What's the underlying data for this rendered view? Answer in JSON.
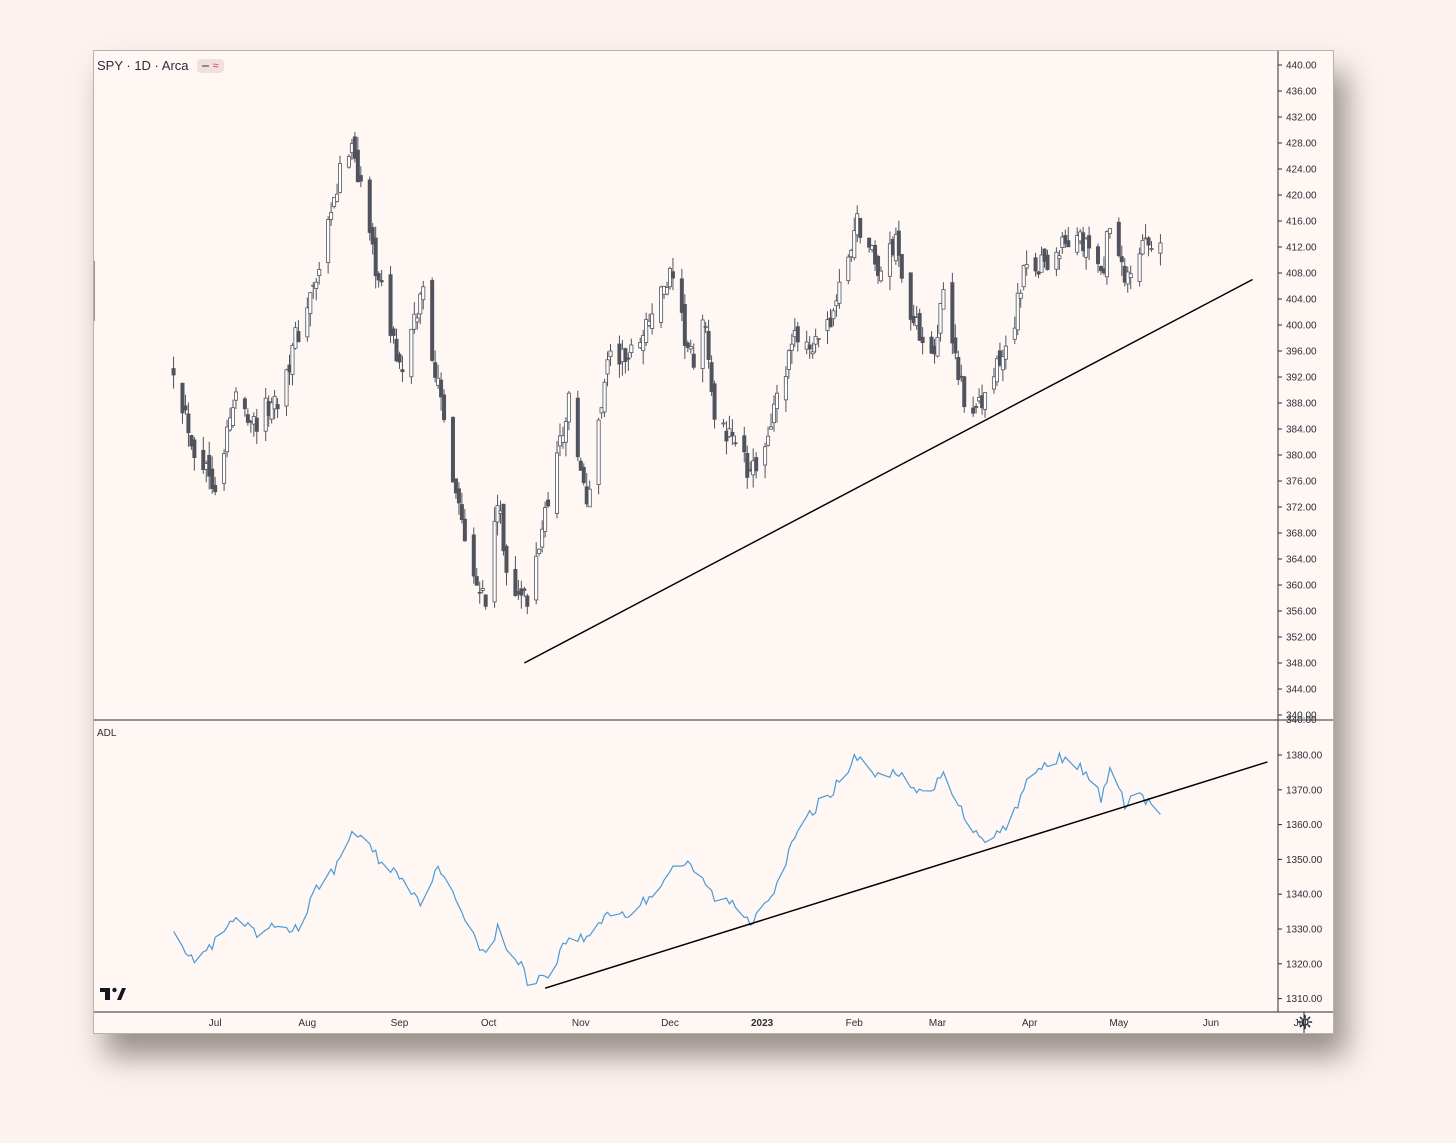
{
  "legend": {
    "symbol": "SPY · 1D · Arca",
    "indicator": "ADL"
  },
  "icons": [
    "tradingview-logo-icon",
    "settings-gear-icon"
  ],
  "colors": {
    "up_body": "#ffffff",
    "down_body": "#50535e",
    "candle_outline": "#50535e",
    "adl_line": "#4c9ad6",
    "trendline": "#000000",
    "background": "#fff7f3"
  },
  "chart_data": [
    {
      "type": "candlestick",
      "title": "SPY · 1D · Arca",
      "ylim": [
        340,
        440
      ],
      "yticks": [
        "440.00",
        "436.00",
        "432.00",
        "428.00",
        "424.00",
        "420.00",
        "416.00",
        "412.00",
        "408.00",
        "404.00",
        "400.00",
        "396.00",
        "392.00",
        "388.00",
        "384.00",
        "380.00",
        "376.00",
        "372.00",
        "368.00",
        "364.00",
        "360.00",
        "356.00",
        "352.00",
        "348.00",
        "344.00",
        "340.00"
      ],
      "x_months": [
        "Jul",
        "Aug",
        "Sep",
        "Oct",
        "Nov",
        "Dec",
        "2023",
        "Feb",
        "Mar",
        "Apr",
        "May",
        "Jun",
        "Jul"
      ],
      "x_month_dates": [
        "2022-07-01",
        "2022-08-01",
        "2022-09-01",
        "2022-10-01",
        "2022-11-01",
        "2022-12-01",
        "2023-01-01",
        "2023-02-01",
        "2023-03-01",
        "2023-04-01",
        "2023-05-01",
        "2023-06-01",
        "2023-07-01"
      ],
      "close_series": [
        [
          "2022-06-17",
          394
        ],
        [
          "2022-06-24",
          381
        ],
        [
          "2022-07-01",
          376
        ],
        [
          "2022-07-08",
          389
        ],
        [
          "2022-07-15",
          385
        ],
        [
          "2022-07-22",
          389
        ],
        [
          "2022-07-29",
          399
        ],
        [
          "2022-08-05",
          408
        ],
        [
          "2022-08-12",
          423
        ],
        [
          "2022-08-16",
          429
        ],
        [
          "2022-08-19",
          421
        ],
        [
          "2022-08-26",
          405
        ],
        [
          "2022-09-02",
          392
        ],
        [
          "2022-09-09",
          406
        ],
        [
          "2022-09-13",
          393
        ],
        [
          "2022-09-16",
          385
        ],
        [
          "2022-09-23",
          368
        ],
        [
          "2022-09-30",
          357
        ],
        [
          "2022-10-04",
          373
        ],
        [
          "2022-10-07",
          362
        ],
        [
          "2022-10-13",
          358
        ],
        [
          "2022-10-14",
          356
        ],
        [
          "2022-10-21",
          374
        ],
        [
          "2022-10-28",
          388
        ],
        [
          "2022-11-03",
          372
        ],
        [
          "2022-11-10",
          395
        ],
        [
          "2022-11-17",
          395
        ],
        [
          "2022-11-25",
          402
        ],
        [
          "2022-12-01",
          407
        ],
        [
          "2022-12-09",
          393
        ],
        [
          "2022-12-13",
          401
        ],
        [
          "2022-12-16",
          384
        ],
        [
          "2022-12-23",
          383
        ],
        [
          "2022-12-28",
          376
        ],
        [
          "2023-01-06",
          388
        ],
        [
          "2023-01-13",
          399
        ],
        [
          "2023-01-20",
          396
        ],
        [
          "2023-01-27",
          405
        ],
        [
          "2023-02-02",
          416
        ],
        [
          "2023-02-10",
          408
        ],
        [
          "2023-02-15",
          413
        ],
        [
          "2023-02-21",
          400
        ],
        [
          "2023-02-28",
          397
        ],
        [
          "2023-03-03",
          404
        ],
        [
          "2023-03-09",
          391
        ],
        [
          "2023-03-13",
          385
        ],
        [
          "2023-03-17",
          389
        ],
        [
          "2023-03-24",
          396
        ],
        [
          "2023-03-31",
          409
        ],
        [
          "2023-04-07",
          410
        ],
        [
          "2023-04-14",
          413
        ],
        [
          "2023-04-21",
          412
        ],
        [
          "2023-04-25",
          407
        ],
        [
          "2023-04-28",
          415
        ],
        [
          "2023-05-03",
          406
        ],
        [
          "2023-05-08",
          412
        ],
        [
          "2023-05-12",
          411
        ],
        [
          "2023-05-15",
          413
        ]
      ],
      "trendline": {
        "from": [
          "2022-10-13",
          348
        ],
        "to": [
          "2023-06-15",
          407
        ]
      }
    },
    {
      "type": "line",
      "title": "ADL",
      "ylim": [
        1310,
        1380
      ],
      "yticks": [
        "1380.00",
        "1370.00",
        "1360.00",
        "1350.00",
        "1340.00",
        "1330.00",
        "1320.00",
        "1310.00"
      ],
      "series": [
        {
          "name": "ADL",
          "points": [
            [
              "2022-06-17",
              1331
            ],
            [
              "2022-06-23",
              1321
            ],
            [
              "2022-06-30",
              1325
            ],
            [
              "2022-07-08",
              1333
            ],
            [
              "2022-07-15",
              1328
            ],
            [
              "2022-07-22",
              1331
            ],
            [
              "2022-07-29",
              1330
            ],
            [
              "2022-08-05",
              1343
            ],
            [
              "2022-08-12",
              1349
            ],
            [
              "2022-08-16",
              1358
            ],
            [
              "2022-08-19",
              1357
            ],
            [
              "2022-08-26",
              1349
            ],
            [
              "2022-09-02",
              1345
            ],
            [
              "2022-09-09",
              1337
            ],
            [
              "2022-09-13",
              1348
            ],
            [
              "2022-09-16",
              1344
            ],
            [
              "2022-09-23",
              1334
            ],
            [
              "2022-09-30",
              1322
            ],
            [
              "2022-10-04",
              1330
            ],
            [
              "2022-10-07",
              1325
            ],
            [
              "2022-10-13",
              1318
            ],
            [
              "2022-10-14",
              1315
            ],
            [
              "2022-10-21",
              1317
            ],
            [
              "2022-10-28",
              1328
            ],
            [
              "2022-11-03",
              1327
            ],
            [
              "2022-11-10",
              1335
            ],
            [
              "2022-11-17",
              1334
            ],
            [
              "2022-11-25",
              1340
            ],
            [
              "2022-12-01",
              1347
            ],
            [
              "2022-12-06",
              1349
            ],
            [
              "2022-12-13",
              1343
            ],
            [
              "2022-12-16",
              1339
            ],
            [
              "2022-12-23",
              1337
            ],
            [
              "2022-12-28",
              1332
            ],
            [
              "2023-01-06",
              1343
            ],
            [
              "2023-01-13",
              1358
            ],
            [
              "2023-01-20",
              1366
            ],
            [
              "2023-01-27",
              1372
            ],
            [
              "2023-02-02",
              1380
            ],
            [
              "2023-02-10",
              1373
            ],
            [
              "2023-02-15",
              1376
            ],
            [
              "2023-02-21",
              1369
            ],
            [
              "2023-02-28",
              1370
            ],
            [
              "2023-03-03",
              1376
            ],
            [
              "2023-03-09",
              1364
            ],
            [
              "2023-03-13",
              1359
            ],
            [
              "2023-03-17",
              1356
            ],
            [
              "2023-03-24",
              1359
            ],
            [
              "2023-03-31",
              1372
            ],
            [
              "2023-04-07",
              1378
            ],
            [
              "2023-04-14",
              1380
            ],
            [
              "2023-04-21",
              1373
            ],
            [
              "2023-04-25",
              1368
            ],
            [
              "2023-04-28",
              1375
            ],
            [
              "2023-05-03",
              1366
            ],
            [
              "2023-05-08",
              1369
            ],
            [
              "2023-05-12",
              1365
            ],
            [
              "2023-05-15",
              1363
            ]
          ]
        }
      ],
      "trendline": {
        "from": [
          "2022-10-20",
          1313
        ],
        "to": [
          "2023-06-20",
          1378
        ]
      }
    }
  ]
}
